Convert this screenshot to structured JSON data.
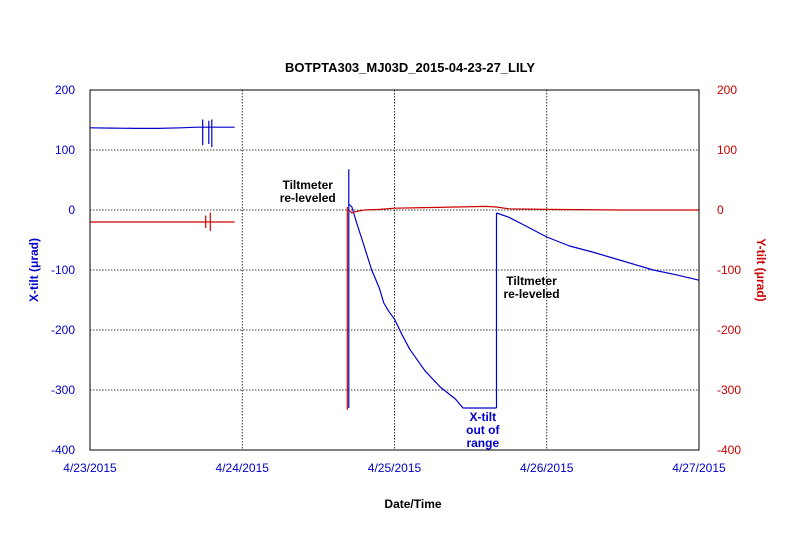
{
  "chart_data": {
    "type": "line",
    "title": "BOTPTA303_MJ03D_2015-04-23-27_LILY",
    "xlabel": "Date/Time",
    "ylabel_left": "X-tilt (μrad)",
    "ylabel_right": "Y-tilt (μrad)",
    "xlim": [
      0,
      4
    ],
    "ylim": [
      -400,
      200
    ],
    "x_ticks": [
      {
        "value": 0,
        "label": "4/23/2015"
      },
      {
        "value": 1,
        "label": "4/24/2015"
      },
      {
        "value": 2,
        "label": "4/25/2015"
      },
      {
        "value": 3,
        "label": "4/26/2015"
      },
      {
        "value": 4,
        "label": "4/27/2015"
      }
    ],
    "y_ticks_left": [
      "200",
      "100",
      "0",
      "-100",
      "-200",
      "-300",
      "-400"
    ],
    "y_ticks_right": [
      "200",
      "100",
      "0",
      "-100",
      "-200",
      "-300",
      "-400"
    ],
    "grid": true,
    "colors": {
      "x_tilt": "#0000cc",
      "y_tilt": "#cc0000",
      "grid": "#000000"
    },
    "series": [
      {
        "axis": "left",
        "color": "#0000cc",
        "segments": [
          [
            [
              0,
              137
            ],
            [
              0.15,
              136.5
            ],
            [
              0.3,
              136
            ],
            [
              0.45,
              136
            ],
            [
              0.6,
              137
            ],
            [
              0.7,
              138
            ],
            [
              0.8,
              138
            ],
            [
              0.95,
              138
            ]
          ],
          [
            [
              0.74,
              138
            ],
            [
              0.74,
              150
            ],
            [
              0.74,
              108
            ]
          ],
          [
            [
              0.78,
              138
            ],
            [
              0.78,
              148
            ],
            [
              0.78,
              110
            ]
          ],
          [
            [
              0.8,
              138
            ],
            [
              0.8,
              150
            ],
            [
              0.8,
              105
            ]
          ],
          [
            [
              1.7,
              68
            ],
            [
              1.7,
              -330
            ]
          ],
          [
            [
              1.7,
              10
            ],
            [
              1.72,
              5
            ],
            [
              1.75,
              -20
            ],
            [
              1.8,
              -60
            ],
            [
              1.85,
              -100
            ],
            [
              1.9,
              -130
            ],
            [
              1.93,
              -155
            ],
            [
              1.96,
              -168
            ],
            [
              2.0,
              -182
            ],
            [
              2.05,
              -208
            ],
            [
              2.1,
              -232
            ],
            [
              2.2,
              -268
            ],
            [
              2.3,
              -295
            ],
            [
              2.4,
              -315
            ],
            [
              2.45,
              -330
            ],
            [
              2.67,
              -330
            ]
          ],
          [
            [
              2.67,
              -330
            ],
            [
              2.67,
              -5
            ]
          ],
          [
            [
              2.67,
              -5
            ],
            [
              2.75,
              -12
            ],
            [
              2.85,
              -25
            ],
            [
              3.0,
              -45
            ],
            [
              3.15,
              -60
            ],
            [
              3.3,
              -70
            ],
            [
              3.5,
              -85
            ],
            [
              3.7,
              -100
            ],
            [
              3.85,
              -108
            ],
            [
              4.0,
              -117
            ]
          ]
        ]
      },
      {
        "axis": "right",
        "color": "#cc0000",
        "segments": [
          [
            [
              0,
              -20
            ],
            [
              0.3,
              -20
            ],
            [
              0.6,
              -20
            ],
            [
              0.74,
              -20
            ],
            [
              0.95,
              -20
            ]
          ],
          [
            [
              0.76,
              -20
            ],
            [
              0.76,
              -10
            ],
            [
              0.76,
              -30
            ]
          ],
          [
            [
              0.79,
              -20
            ],
            [
              0.79,
              -5
            ],
            [
              0.79,
              -35
            ]
          ],
          [
            [
              1.69,
              5
            ],
            [
              1.69,
              -333
            ]
          ],
          [
            [
              1.7,
              0
            ],
            [
              1.72,
              -5
            ],
            [
              1.74,
              -3
            ]
          ],
          [
            [
              1.74,
              -3
            ],
            [
              1.8,
              0
            ],
            [
              1.9,
              1
            ],
            [
              2.0,
              3
            ],
            [
              2.2,
              4
            ],
            [
              2.4,
              5
            ],
            [
              2.6,
              6
            ],
            [
              2.67,
              5
            ],
            [
              2.75,
              2
            ],
            [
              3.0,
              1
            ],
            [
              3.5,
              0
            ],
            [
              4.0,
              0
            ]
          ]
        ]
      }
    ],
    "annotations": [
      {
        "lines": [
          "Tiltmeter",
          "re-leveled"
        ],
        "x": 1.43,
        "y": 35,
        "color": "black"
      },
      {
        "lines": [
          "Tiltmeter",
          "re-leveled"
        ],
        "x": 2.9,
        "y": -125,
        "color": "black"
      },
      {
        "lines": [
          "X-tilt",
          "out of",
          "range"
        ],
        "x": 2.58,
        "y": -352,
        "color": "blue"
      }
    ]
  }
}
